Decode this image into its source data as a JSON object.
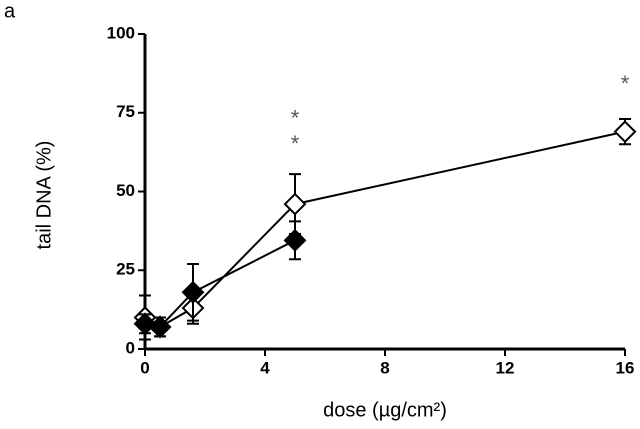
{
  "chart_data": {
    "type": "line",
    "panel_label": "a",
    "xlabel": "dose (µg/cm²)",
    "ylabel": "tail DNA (%)",
    "xlim": [
      0,
      16
    ],
    "xticks": [
      0,
      4,
      8,
      12,
      16
    ],
    "ylim": [
      0,
      100
    ],
    "yticks": [
      0,
      25,
      50,
      75,
      100
    ],
    "x": [
      0,
      0.5,
      1.6,
      5,
      16
    ],
    "series": [
      {
        "color": "#000000",
        "marker_fill": "#ffffff",
        "values": [
          10,
          7,
          13,
          46,
          69
        ],
        "errors": [
          7,
          3,
          5,
          9.5,
          4
        ]
      },
      {
        "color": "#000000",
        "marker_fill": "#000000",
        "values": [
          8,
          7,
          18,
          34.5,
          null
        ],
        "errors": [
          3,
          3,
          9,
          6,
          null
        ]
      }
    ],
    "annotations": [
      {
        "text": "*",
        "x": 5,
        "y": 74
      },
      {
        "text": "*",
        "x": 5,
        "y": 66
      },
      {
        "text": "*",
        "x": 16,
        "y": 85
      }
    ]
  }
}
